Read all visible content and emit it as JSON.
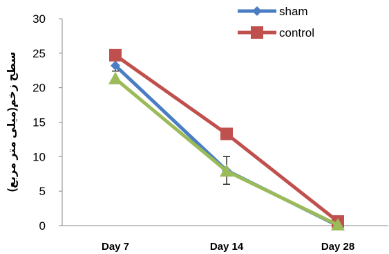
{
  "chart_data": {
    "type": "line",
    "categories": [
      "Day 7",
      "Day 14",
      "Day 28"
    ],
    "ylabel": "سطح زخم(میلی متر مربع)",
    "ylim": [
      0,
      30
    ],
    "yticks": [
      0,
      5,
      10,
      15,
      20,
      25,
      30
    ],
    "grid": false,
    "legend_position": "top-right",
    "series": [
      {
        "name": "sham",
        "values": [
          23.2,
          8.0,
          0.0
        ],
        "color": "#4a7dc4",
        "marker": "diamond",
        "error": [
          0.8,
          2.0,
          0
        ]
      },
      {
        "name": "control",
        "values": [
          24.7,
          13.3,
          0.6
        ],
        "color": "#c0504d",
        "marker": "square",
        "error": [
          0,
          0,
          0
        ]
      },
      {
        "name": "",
        "values": [
          21.3,
          7.9,
          0.1
        ],
        "color": "#9bbb59",
        "marker": "triangle",
        "error": [
          0,
          0,
          0
        ]
      }
    ]
  }
}
